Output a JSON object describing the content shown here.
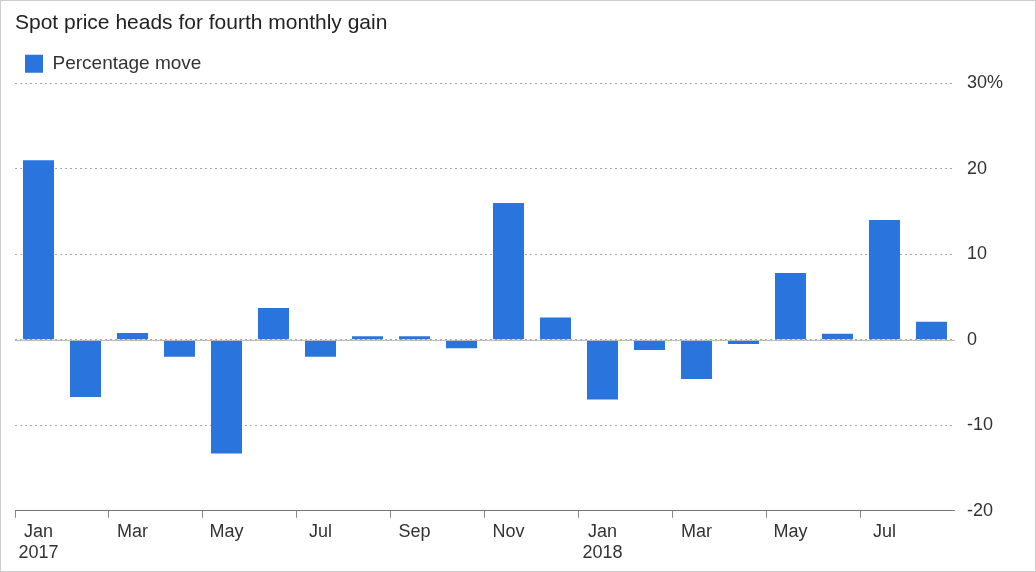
{
  "chart_data": {
    "type": "bar",
    "title": "Spot price heads for fourth monthly gain",
    "categories": [
      [
        "Jan",
        "2017"
      ],
      null,
      "Mar",
      null,
      "May",
      null,
      "Jul",
      null,
      "Sep",
      null,
      "Nov",
      null,
      [
        "Jan",
        "2018"
      ],
      null,
      "Mar",
      null,
      "May",
      null,
      "Jul",
      null
    ],
    "series": [
      {
        "name": "Percentage move",
        "color": "#2a75dd",
        "values": [
          21,
          -6.7,
          0.8,
          -2,
          -13.3,
          3.7,
          -2,
          0.4,
          0.4,
          -1,
          16,
          2.6,
          -7,
          -1.2,
          -4.6,
          -0.5,
          7.8,
          0.7,
          14,
          2.1
        ]
      }
    ],
    "ylim": [
      -20,
      30
    ],
    "yticks": [
      -20,
      -10,
      0,
      10,
      20,
      {
        "value": 30,
        "label": "30%"
      }
    ],
    "grid": true,
    "legend": "top-left"
  }
}
